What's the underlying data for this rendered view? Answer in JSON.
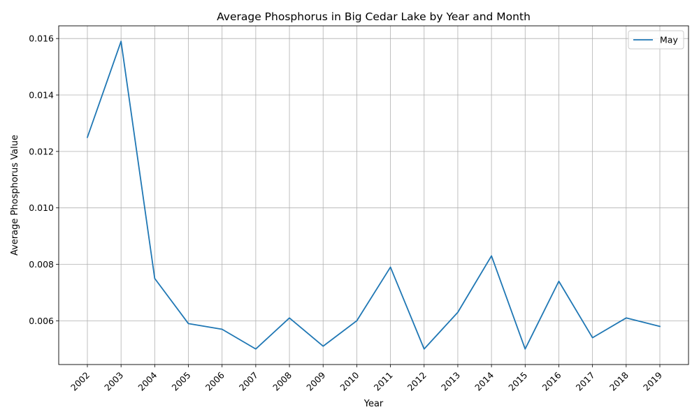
{
  "chart_data": {
    "type": "line",
    "title": "Average Phosphorus in Big Cedar Lake by Year and Month",
    "xlabel": "Year",
    "ylabel": "Average Phosphorus Value",
    "categories": [
      "2002",
      "2003",
      "2004",
      "2005",
      "2006",
      "2007",
      "2008",
      "2009",
      "2010",
      "2011",
      "2012",
      "2013",
      "2014",
      "2015",
      "2016",
      "2017",
      "2018",
      "2019"
    ],
    "series": [
      {
        "name": "May",
        "color": "#1f77b4",
        "values": [
          0.0125,
          0.0159,
          0.0075,
          0.0059,
          0.0057,
          0.005,
          0.0061,
          0.0051,
          0.006,
          0.0079,
          0.005,
          0.0063,
          0.0083,
          0.005,
          0.0074,
          0.0054,
          0.0061,
          0.0058
        ]
      }
    ],
    "ylim": [
      0.00445,
      0.01645
    ],
    "yticks": [
      "0.006",
      "0.008",
      "0.010",
      "0.012",
      "0.014",
      "0.016"
    ],
    "grid": true,
    "legend_position": "top-right"
  }
}
